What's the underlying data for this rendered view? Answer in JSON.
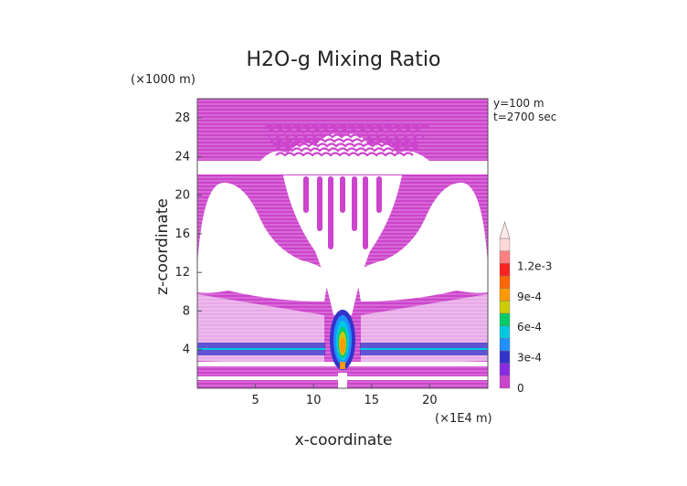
{
  "chart_data": {
    "type": "heatmap",
    "title": "H2O-g Mixing Ratio",
    "xlabel": "x-coordinate",
    "ylabel": "z-coordinate",
    "x_unit": "(×1E4 m)",
    "y_unit": "(×1000 m)",
    "annotations": [
      "y=100 m",
      "t=2700 sec"
    ],
    "xlim": [
      0,
      25
    ],
    "ylim": [
      0,
      30
    ],
    "x_ticks": [
      5,
      10,
      15,
      20
    ],
    "y_ticks": [
      4,
      8,
      12,
      16,
      20,
      24,
      28
    ],
    "colorbar": {
      "labels": [
        "0",
        "3e-4",
        "6e-4",
        "9e-4",
        "1.2e-3"
      ],
      "levels": [
        0,
        0.00015,
        0.0003,
        0.00045,
        0.0006,
        0.00075,
        0.0009,
        0.00105,
        0.0012,
        0.00135
      ],
      "colors": [
        "#cc44cc",
        "#8a2be2",
        "#3333cc",
        "#1e90ff",
        "#00c8e0",
        "#00cc66",
        "#cccc00",
        "#ff9900",
        "#ff6600",
        "#ff2222",
        "#ff8080",
        "#ffd8d8"
      ]
    },
    "background_value": 0
  }
}
